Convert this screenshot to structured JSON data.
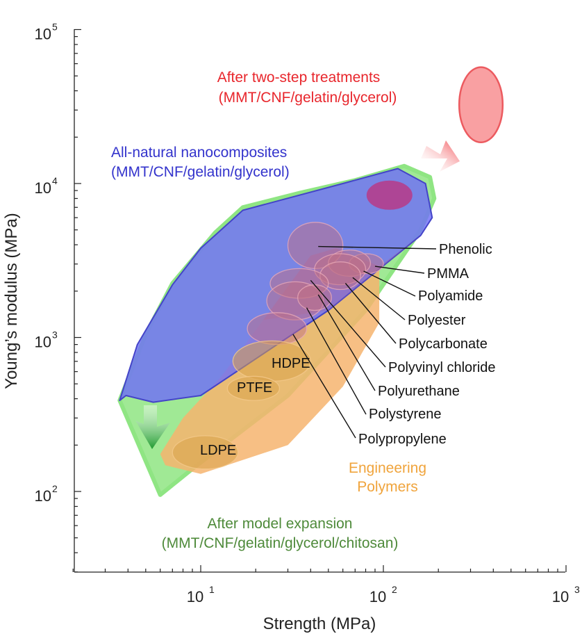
{
  "chart_data": {
    "type": "scatter",
    "title": "",
    "xlabel": "Strength (MPa)",
    "ylabel": "Young’s modulus (MPa)",
    "xscale": "log",
    "yscale": "log",
    "xlim": [
      2,
      1000
    ],
    "ylim": [
      30,
      100000
    ],
    "x_ticks": [
      {
        "base": "10",
        "exp": "1",
        "value": 10
      },
      {
        "base": "10",
        "exp": "2",
        "value": 100
      },
      {
        "base": "10",
        "exp": "3",
        "value": 1000
      }
    ],
    "y_ticks": [
      {
        "base": "10",
        "exp": "2",
        "value": 100
      },
      {
        "base": "10",
        "exp": "3",
        "value": 1000
      },
      {
        "base": "10",
        "exp": "4",
        "value": 10000
      },
      {
        "base": "10",
        "exp": "5",
        "value": 100000
      }
    ],
    "regions": [
      {
        "name": "after-model-expansion",
        "color": "#7ee07a",
        "label_lines": [
          "After model expansion",
          "(MMT/CNF/gelatin/glycerol/chitosan)"
        ],
        "label_color": "#4e8a3a",
        "polygon": [
          [
            3.6,
            390
          ],
          [
            6,
            95
          ],
          [
            9,
            140
          ],
          [
            30,
            420
          ],
          [
            80,
            1500
          ],
          [
            160,
            5000
          ],
          [
            190,
            8000
          ],
          [
            180,
            11000
          ],
          [
            130,
            13000
          ],
          [
            70,
            10500
          ],
          [
            35,
            8700
          ],
          [
            17,
            7000
          ],
          [
            12,
            4800
          ],
          [
            7,
            2250
          ],
          [
            5,
            1050
          ],
          [
            3.6,
            390
          ]
        ]
      },
      {
        "name": "engineering-polymers",
        "color": "#f5b068",
        "label_lines": [
          "Engineering",
          "Polymers"
        ],
        "label_color": "#f0a43c",
        "polygon": [
          [
            6,
            175
          ],
          [
            6.4,
            148
          ],
          [
            10,
            130
          ],
          [
            30,
            200
          ],
          [
            60,
            480
          ],
          [
            95,
            1250
          ],
          [
            95,
            2900
          ],
          [
            55,
            3800
          ],
          [
            40,
            3400
          ],
          [
            22,
            1300
          ],
          [
            13,
            560
          ],
          [
            8,
            300
          ],
          [
            6,
            175
          ]
        ]
      },
      {
        "name": "all-natural-nanocomposites",
        "color": "#6a6cf2",
        "label_lines": [
          "All-natural nanocomposites",
          "(MMT/CNF/gelatin/glycerol)"
        ],
        "label_color": "#3333cc",
        "polygon": [
          [
            3.6,
            390
          ],
          [
            3.9,
            420
          ],
          [
            5.5,
            380
          ],
          [
            10,
            420
          ],
          [
            50,
            1500
          ],
          [
            160,
            4600
          ],
          [
            185,
            6000
          ],
          [
            170,
            10000
          ],
          [
            120,
            12500
          ],
          [
            60,
            10000
          ],
          [
            17,
            6700
          ],
          [
            10,
            3800
          ],
          [
            7,
            2200
          ],
          [
            4.5,
            900
          ],
          [
            3.6,
            390
          ]
        ]
      },
      {
        "name": "after-two-step-treatments",
        "color": "#f77a7a",
        "label_lines": [
          "After two-step treatments",
          "(MMT/CNF/gelatin/glycerol)"
        ],
        "label_color": "#e8262c",
        "ellipse": {
          "cx": 340,
          "cy": 33000,
          "x_lo": 260,
          "x_hi": 450,
          "y_lo": 18500,
          "y_hi": 57000
        }
      }
    ],
    "materials": [
      {
        "name": "Phenolic",
        "center": [
          43,
          4000
        ],
        "range_x": [
          30,
          60
        ],
        "range_y": [
          2800,
          5600
        ],
        "leader_to": [
          44,
          3900
        ]
      },
      {
        "name": "PMMA",
        "center": [
          80,
          3000
        ],
        "range_x": [
          65,
          100
        ],
        "range_y": [
          2600,
          3500
        ],
        "leader_to": [
          90,
          2900
        ]
      },
      {
        "name": "Polyamide",
        "center": [
          66,
          3000
        ],
        "range_x": [
          50,
          85
        ],
        "range_y": [
          2500,
          3700
        ],
        "leader_to": [
          78,
          2700
        ]
      },
      {
        "name": "Polyester",
        "center": [
          57,
          2800
        ],
        "range_x": [
          42,
          80
        ],
        "range_y": [
          2200,
          3500
        ],
        "leader_to": [
          68,
          2450
        ]
      },
      {
        "name": "Polycarbonate",
        "center": [
          58,
          2500
        ],
        "range_x": [
          45,
          75
        ],
        "range_y": [
          2050,
          3100
        ],
        "leader_to": [
          62,
          2250
        ]
      },
      {
        "name": "Polyvinyl chloride",
        "center": [
          35,
          2250
        ],
        "range_x": [
          24,
          50
        ],
        "range_y": [
          1800,
          2800
        ],
        "leader_to": [
          40,
          2350
        ]
      },
      {
        "name": "Polyurethane",
        "center": [
          33,
          1700
        ],
        "range_x": [
          23,
          47
        ],
        "range_y": [
          1300,
          2300
        ],
        "leader_to": [
          44,
          1900
        ]
      },
      {
        "name": "Polystyrene",
        "center": [
          42,
          1800
        ],
        "range_x": [
          34,
          52
        ],
        "range_y": [
          1500,
          2200
        ],
        "leader_to": [
          38,
          1560
        ]
      },
      {
        "name": "Polypropylene",
        "center": [
          26,
          1150
        ],
        "range_x": [
          18,
          38
        ],
        "range_y": [
          900,
          1450
        ],
        "leader_to": [
          32,
          1050
        ]
      },
      {
        "name": "HDPE",
        "center": [
          24,
          700
        ],
        "range_x": [
          15,
          40
        ],
        "range_y": [
          520,
          950
        ]
      },
      {
        "name": "PTFE",
        "center": [
          20,
          470
        ],
        "range_x": [
          14,
          27
        ],
        "range_y": [
          390,
          560
        ]
      },
      {
        "name": "LDPE",
        "center": [
          10,
          180
        ],
        "range_x": [
          7,
          16
        ],
        "range_y": [
          140,
          230
        ]
      }
    ]
  }
}
